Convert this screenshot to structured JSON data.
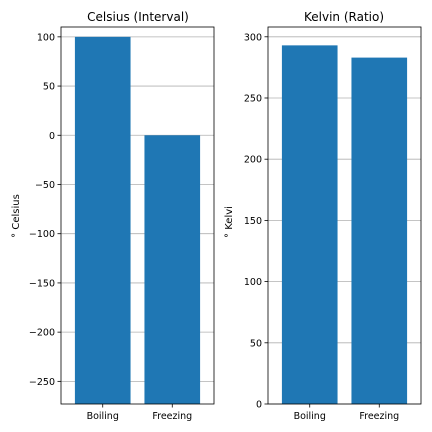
{
  "chart_data": [
    {
      "type": "bar",
      "title": "Celsius (Interval)",
      "xlabel": "",
      "ylabel": "$^\\circ$ Celsius",
      "ylabel_display": "° Celsius",
      "categories": [
        "Boiling",
        "Freezing"
      ],
      "values": [
        100,
        0
      ],
      "ylim": [
        -273,
        110
      ],
      "yticks": [
        100,
        50,
        0,
        -50,
        -100,
        -150,
        -200,
        -250
      ],
      "ytick_labels": [
        "100",
        "50",
        "0",
        "−50",
        "−100",
        "−150",
        "−200",
        "−250"
      ],
      "bar_baseline": -273,
      "grid": "y",
      "color": "#1f77b4"
    },
    {
      "type": "bar",
      "title": "Kelvin (Ratio)",
      "xlabel": "",
      "ylabel": "$^\\circ$ Kelvi",
      "ylabel_display": "° Kelvi",
      "categories": [
        "Boiling",
        "Freezing"
      ],
      "values": [
        293,
        283
      ],
      "ylim": [
        0,
        308
      ],
      "yticks": [
        0,
        50,
        100,
        150,
        200,
        250,
        300
      ],
      "ytick_labels": [
        "0",
        "50",
        "100",
        "150",
        "200",
        "250",
        "300"
      ],
      "bar_baseline": 0,
      "grid": "y",
      "color": "#1f77b4"
    }
  ]
}
